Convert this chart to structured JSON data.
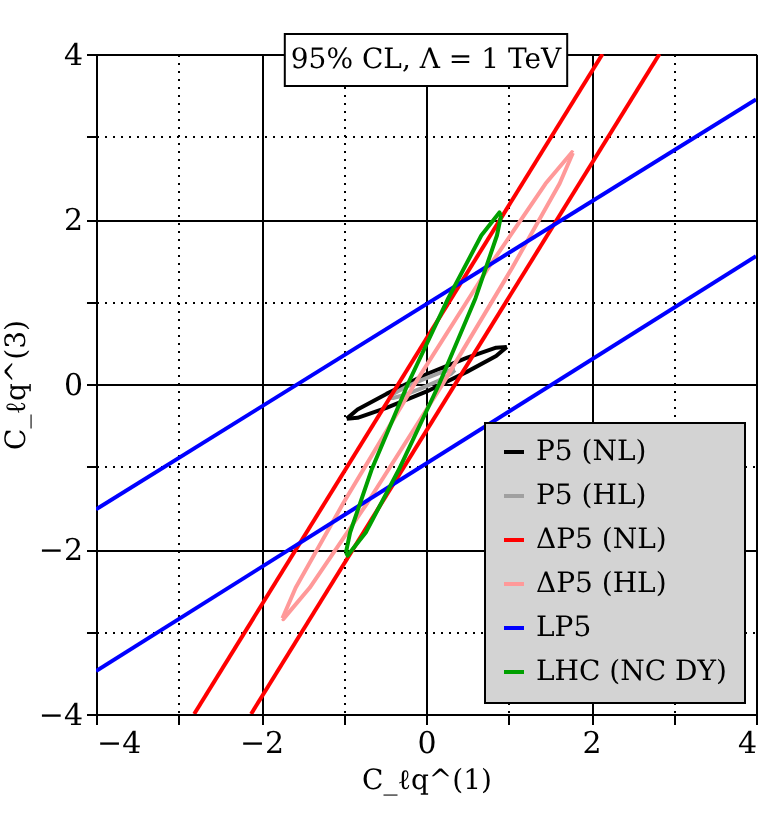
{
  "chart_data": {
    "type": "line",
    "annotations": [
      "95% CL, Λ = 1 TeV"
    ],
    "xlabel": "C_ℓq^(1)",
    "ylabel": "C_ℓq^(3)",
    "xlim": [
      -4,
      4
    ],
    "ylim": [
      -4,
      4
    ],
    "xticks": [
      -4,
      {
        "value": -3,
        "label": null
      },
      -2,
      {
        "value": -1,
        "label": null
      },
      0,
      {
        "value": 1,
        "label": null
      },
      2,
      {
        "value": 3,
        "label": null
      },
      4
    ],
    "yticks": [
      -4,
      {
        "value": -3,
        "label": null
      },
      -2,
      {
        "value": -1,
        "label": null
      },
      0,
      {
        "value": 1,
        "label": null
      },
      2,
      {
        "value": 3,
        "label": null
      },
      4
    ],
    "grid": true,
    "legend": "bottom right",
    "series": [
      {
        "name": "P5 (NL)",
        "color": "#000000",
        "x": [
          0.98,
          0.85,
          0.5,
          0.01,
          -0.48,
          -0.83,
          -0.96
        ],
        "values": [
          0.45,
          0.44,
          0.32,
          0.12,
          -0.12,
          -0.31,
          -0.42
        ]
      },
      {
        "color": "#000000",
        "x": [
          -0.96,
          -0.83,
          -0.48,
          0.01,
          0.5,
          0.85,
          0.98
        ],
        "values": [
          -0.42,
          -0.41,
          -0.29,
          -0.09,
          0.15,
          0.34,
          0.45
        ]
      },
      {
        "name": "P5 (HL)",
        "color": "#a0a0a0",
        "x": [
          0.35,
          0.3,
          0.15,
          -0.05,
          -0.25,
          -0.4,
          -0.45
        ],
        "values": [
          0.17,
          0.17,
          0.13,
          0.05,
          -0.04,
          -0.12,
          -0.17
        ]
      },
      {
        "color": "#a0a0a0",
        "x": [
          -0.45,
          -0.4,
          -0.25,
          -0.05,
          0.15,
          0.3,
          0.35
        ],
        "values": [
          -0.17,
          -0.17,
          -0.13,
          -0.05,
          0.04,
          0.12,
          0.17
        ]
      },
      {
        "name": "ΔP5 (NL)",
        "color": "#ff0000",
        "x": [
          -2.81,
          2.14
        ],
        "values": [
          -4,
          4
        ]
      },
      {
        "color": "#ff0000",
        "x": [
          -2.12,
          2.83
        ],
        "values": [
          -4,
          4
        ]
      },
      {
        "name": "ΔP5 (HL)",
        "color": "#ff9999",
        "x": [
          1.78,
          1.62,
          1.04,
          0.19,
          -0.71,
          -1.41,
          -1.73,
          -1.74
        ],
        "values": [
          2.8,
          2.43,
          1.4,
          -0.02,
          -1.44,
          -2.47,
          -2.85,
          -2.84
        ]
      },
      {
        "color": "#ff9999",
        "x": [
          -1.74,
          -1.58,
          -1.0,
          -0.15,
          0.75,
          1.45,
          1.77,
          1.78
        ],
        "values": [
          -2.84,
          -2.47,
          -1.44,
          -0.02,
          1.4,
          2.43,
          2.81,
          2.8
        ]
      },
      {
        "name": "LP5",
        "color": "#0000ff",
        "x": [
          -4,
          4
        ],
        "values": [
          -1.52,
          3.45
        ]
      },
      {
        "color": "#0000ff",
        "x": [
          -4,
          4
        ],
        "values": [
          -3.48,
          1.55
        ]
      },
      {
        "name": "LHC (NC DY)",
        "color": "#00a000",
        "x": [
          0.91,
          0.86,
          0.6,
          0.16,
          -0.33,
          -0.73,
          -0.95,
          -0.97
        ],
        "values": [
          2.04,
          1.8,
          1.04,
          0,
          -1.04,
          -1.8,
          -2.08,
          -2.04
        ]
      },
      {
        "color": "#00a000",
        "x": [
          -0.97,
          -0.92,
          -0.66,
          -0.22,
          0.27,
          0.67,
          0.89,
          0.91
        ],
        "values": [
          -2.04,
          -1.8,
          -1.04,
          0,
          1.04,
          1.8,
          2.08,
          2.04
        ]
      }
    ]
  }
}
